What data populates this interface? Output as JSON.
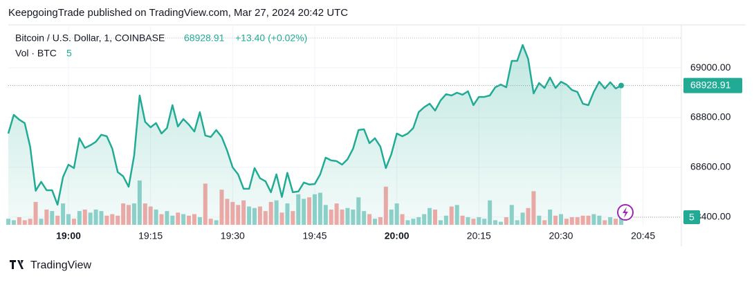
{
  "chart_data": {
    "type": "line",
    "header": "KeepgoingTrade published on TradingView.com, Mar 27, 2024 20:42 UTC",
    "change_label": "+13.40 (+0.02%)",
    "brand": "TradingView",
    "x": [
      "18:49",
      "18:50",
      "18:51",
      "18:52",
      "18:53",
      "18:54",
      "18:55",
      "18:56",
      "18:57",
      "18:58",
      "18:59",
      "19:00",
      "19:01",
      "19:02",
      "19:03",
      "19:04",
      "19:05",
      "19:06",
      "19:07",
      "19:08",
      "19:09",
      "19:10",
      "19:11",
      "19:12",
      "19:13",
      "19:14",
      "19:15",
      "19:16",
      "19:17",
      "19:18",
      "19:19",
      "19:20",
      "19:21",
      "19:22",
      "19:23",
      "19:24",
      "19:25",
      "19:26",
      "19:27",
      "19:28",
      "19:29",
      "19:30",
      "19:31",
      "19:32",
      "19:33",
      "19:34",
      "19:35",
      "19:36",
      "19:37",
      "19:38",
      "19:39",
      "19:40",
      "19:41",
      "19:42",
      "19:43",
      "19:44",
      "19:45",
      "19:46",
      "19:47",
      "19:48",
      "19:49",
      "19:50",
      "19:51",
      "19:52",
      "19:53",
      "19:54",
      "19:55",
      "19:56",
      "19:57",
      "19:58",
      "19:59",
      "20:00",
      "20:01",
      "20:02",
      "20:03",
      "20:04",
      "20:05",
      "20:06",
      "20:07",
      "20:08",
      "20:09",
      "20:10",
      "20:11",
      "20:12",
      "20:13",
      "20:14",
      "20:15",
      "20:16",
      "20:17",
      "20:18",
      "20:19",
      "20:20",
      "20:21",
      "20:22",
      "20:23",
      "20:24",
      "20:25",
      "20:26",
      "20:27",
      "20:28",
      "20:29",
      "20:30",
      "20:31",
      "20:32",
      "20:33",
      "20:34",
      "20:35",
      "20:36",
      "20:37",
      "20:38",
      "20:39",
      "20:40",
      "20:41"
    ],
    "series": [
      {
        "name": "Bitcoin / U.S. Dollar, 1, COINBASE",
        "color": "#22ab94",
        "values": [
          68736,
          68811,
          68792,
          68778,
          68683,
          68506,
          68542,
          68508,
          68508,
          68450,
          68561,
          68611,
          68597,
          68717,
          68678,
          68689,
          68703,
          68731,
          68725,
          68675,
          68581,
          68564,
          68522,
          68647,
          68889,
          68783,
          68761,
          68778,
          68736,
          68758,
          68850,
          68764,
          68794,
          68772,
          68744,
          68822,
          68728,
          68722,
          68750,
          68722,
          68667,
          68600,
          68572,
          68514,
          68514,
          68597,
          68556,
          68544,
          68500,
          68572,
          68481,
          68578,
          68500,
          68503,
          68539,
          68531,
          68533,
          68572,
          68639,
          68628,
          68625,
          68611,
          68633,
          68675,
          68750,
          68753,
          68697,
          68717,
          68683,
          68597,
          68653,
          68736,
          68725,
          68736,
          68758,
          68822,
          68842,
          68856,
          68828,
          68869,
          68894,
          68889,
          68900,
          68892,
          68906,
          68850,
          68883,
          68883,
          68889,
          68922,
          68933,
          68922,
          69028,
          69028,
          69092,
          69036,
          68897,
          68939,
          68919,
          68961,
          68919,
          68944,
          68933,
          68911,
          68903,
          68856,
          68850,
          68903,
          68944,
          68917,
          68942,
          68917,
          68928.91
        ]
      },
      {
        "name": "Vol · BTC",
        "axis": "y2",
        "up_color": "#92d2cc",
        "down_color": "#f7a9a7",
        "values": [
          4,
          3,
          5,
          3,
          4,
          15,
          4,
          10,
          9,
          6,
          14,
          7,
          4,
          9,
          10,
          8,
          10,
          9,
          6,
          7,
          6,
          14,
          13,
          14,
          29,
          14,
          12,
          10,
          7,
          9,
          6,
          8,
          7,
          6,
          7,
          5,
          27,
          4,
          3,
          23,
          17,
          15,
          13,
          16,
          12,
          11,
          12,
          9,
          15,
          16,
          8,
          14,
          9,
          20,
          17,
          18,
          20,
          21,
          13,
          10,
          14,
          10,
          11,
          10,
          18,
          9,
          7,
          4,
          5,
          25,
          10,
          14,
          7,
          3,
          4,
          5,
          7,
          11,
          10,
          3,
          6,
          12,
          13,
          6,
          5,
          4,
          5,
          4,
          16,
          3,
          2,
          5,
          13,
          3,
          8,
          11,
          22,
          6,
          3,
          10,
          6,
          7,
          4,
          5,
          5,
          6,
          6,
          7,
          6,
          3,
          5,
          4,
          5
        ]
      }
    ],
    "xlim": [
      "18:49",
      "20:52"
    ],
    "xticks": [
      "19:00",
      "19:15",
      "19:30",
      "19:45",
      "20:00",
      "20:15",
      "20:30",
      "20:45"
    ],
    "ylim": [
      68369,
      69167
    ],
    "yticks": [
      {
        "value": 68400,
        "label": "68400.00"
      },
      {
        "value": 68600,
        "label": "68600.00"
      },
      {
        "value": 68800,
        "label": "68800.00"
      },
      {
        "value": 69000,
        "label": "69000.00"
      }
    ],
    "y2lim": [
      0,
      130
    ],
    "grid": true
  }
}
